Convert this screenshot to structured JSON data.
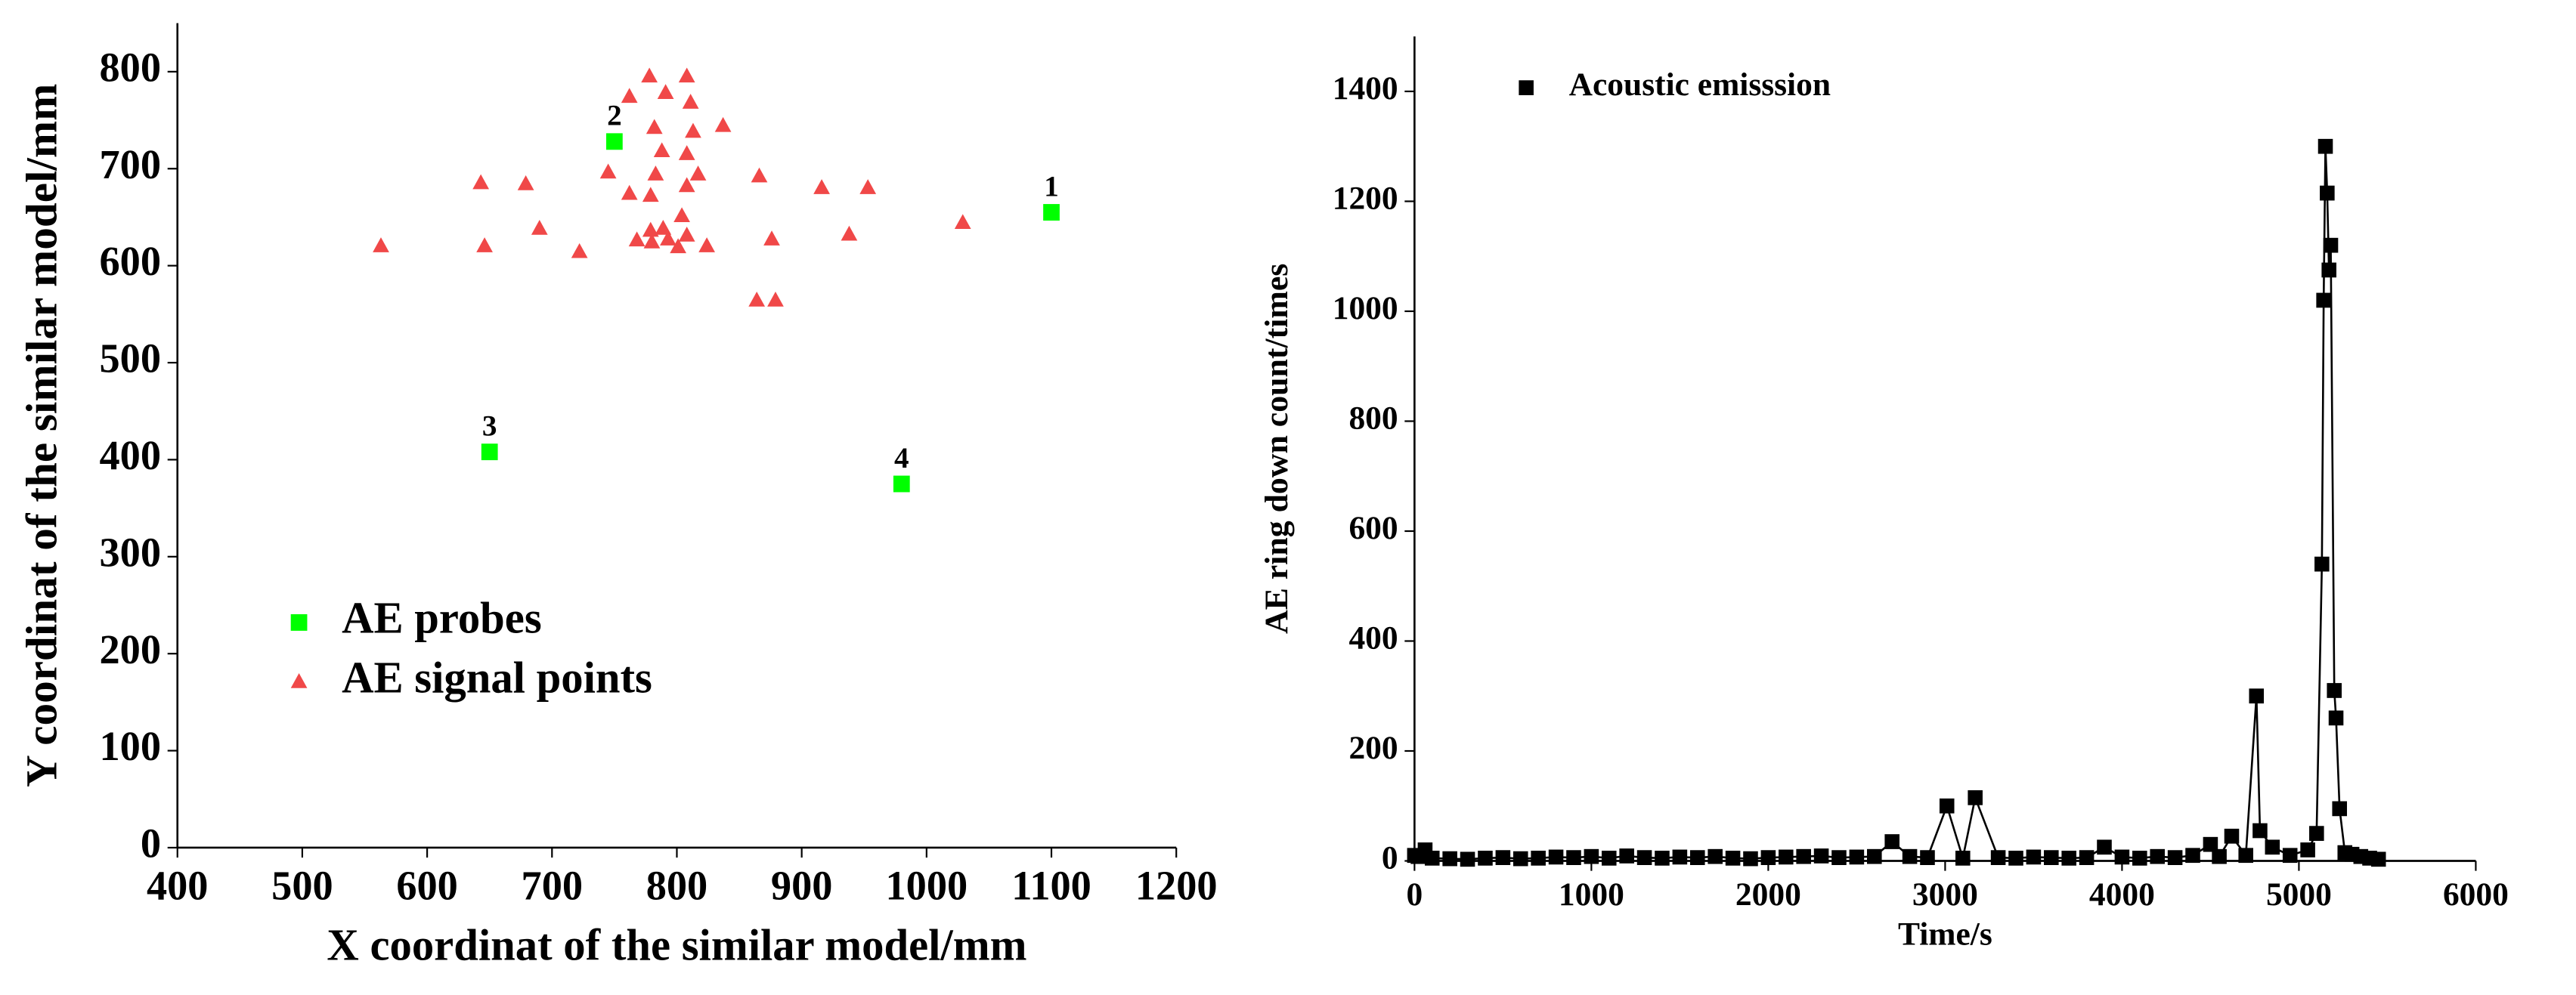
{
  "chart_data": [
    {
      "type": "scatter",
      "xlabel": "X coordinat of the similar model/mm",
      "ylabel": "Y coordinat of the similar model/mm",
      "xlim": [
        400,
        1200
      ],
      "xticks": [
        400,
        500,
        600,
        700,
        800,
        900,
        1000,
        1100,
        1200
      ],
      "ylim": [
        0,
        850
      ],
      "yticks": [
        0,
        100,
        200,
        300,
        400,
        500,
        600,
        700,
        800
      ],
      "legend": "lower left",
      "series": [
        {
          "name": "AE probes",
          "color": "#00ff00",
          "marker": "square",
          "x": [
            1100,
            750,
            650,
            980
          ],
          "values": [
            655,
            728,
            408,
            375
          ],
          "point_labels": [
            "1",
            "2",
            "3",
            "4"
          ]
        },
        {
          "name": "AE signal points",
          "color": "#f04848",
          "marker": "triangle",
          "x": [
            563,
            643,
            646,
            679,
            690,
            722,
            778,
            808,
            762,
            791,
            811,
            782,
            813,
            837,
            788,
            808,
            745,
            783,
            817,
            762,
            779,
            808,
            866,
            916,
            953,
            804,
            779,
            789,
            768,
            780,
            793,
            808,
            824,
            801,
            876,
            938,
            1029,
            864,
            879
          ],
          "values": [
            620,
            685,
            620,
            684,
            638,
            614,
            795,
            795,
            774,
            778,
            768,
            742,
            738,
            744,
            718,
            715,
            696,
            694,
            694,
            674,
            672,
            682,
            692,
            680,
            680,
            651,
            636,
            638,
            626,
            624,
            627,
            631,
            620,
            619,
            627,
            632,
            644,
            564,
            564
          ]
        }
      ]
    },
    {
      "type": "line",
      "xlabel": "Time/s",
      "ylabel": "AE ring down count/times",
      "xlim": [
        0,
        6000
      ],
      "xticks": [
        0,
        1000,
        2000,
        3000,
        4000,
        5000,
        6000
      ],
      "ylim": [
        0,
        1500
      ],
      "yticks": [
        0,
        200,
        400,
        600,
        800,
        1000,
        1200,
        1400
      ],
      "legend": "upper left",
      "series": [
        {
          "name": "Acoustic emisssion",
          "color": "#000000",
          "marker": "square",
          "x": [
            0,
            20,
            60,
            100,
            200,
            300,
            400,
            500,
            600,
            700,
            800,
            900,
            1000,
            1100,
            1200,
            1300,
            1400,
            1500,
            1600,
            1700,
            1800,
            1900,
            2000,
            2100,
            2200,
            2300,
            2400,
            2500,
            2600,
            2700,
            2800,
            2900,
            3010,
            3100,
            3170,
            3300,
            3400,
            3500,
            3600,
            3700,
            3800,
            3900,
            4000,
            4100,
            4200,
            4300,
            4400,
            4500,
            4550,
            4620,
            4700,
            4760,
            4780,
            4850,
            4950,
            5050,
            5100,
            5130,
            5140,
            5150,
            5160,
            5170,
            5180,
            5200,
            5210,
            5230,
            5260,
            5300,
            5350,
            5400,
            5450
          ],
          "values": [
            10,
            8,
            20,
            5,
            4,
            3,
            5,
            6,
            4,
            5,
            7,
            6,
            8,
            5,
            9,
            6,
            5,
            7,
            6,
            8,
            5,
            4,
            6,
            7,
            8,
            9,
            6,
            7,
            8,
            35,
            8,
            6,
            100,
            5,
            115,
            6,
            5,
            7,
            6,
            5,
            6,
            25,
            7,
            5,
            8,
            6,
            10,
            30,
            8,
            45,
            10,
            300,
            55,
            25,
            10,
            20,
            50,
            540,
            1020,
            1300,
            1215,
            1075,
            1120,
            310,
            260,
            95,
            15,
            12,
            8,
            5,
            3
          ]
        }
      ]
    }
  ]
}
